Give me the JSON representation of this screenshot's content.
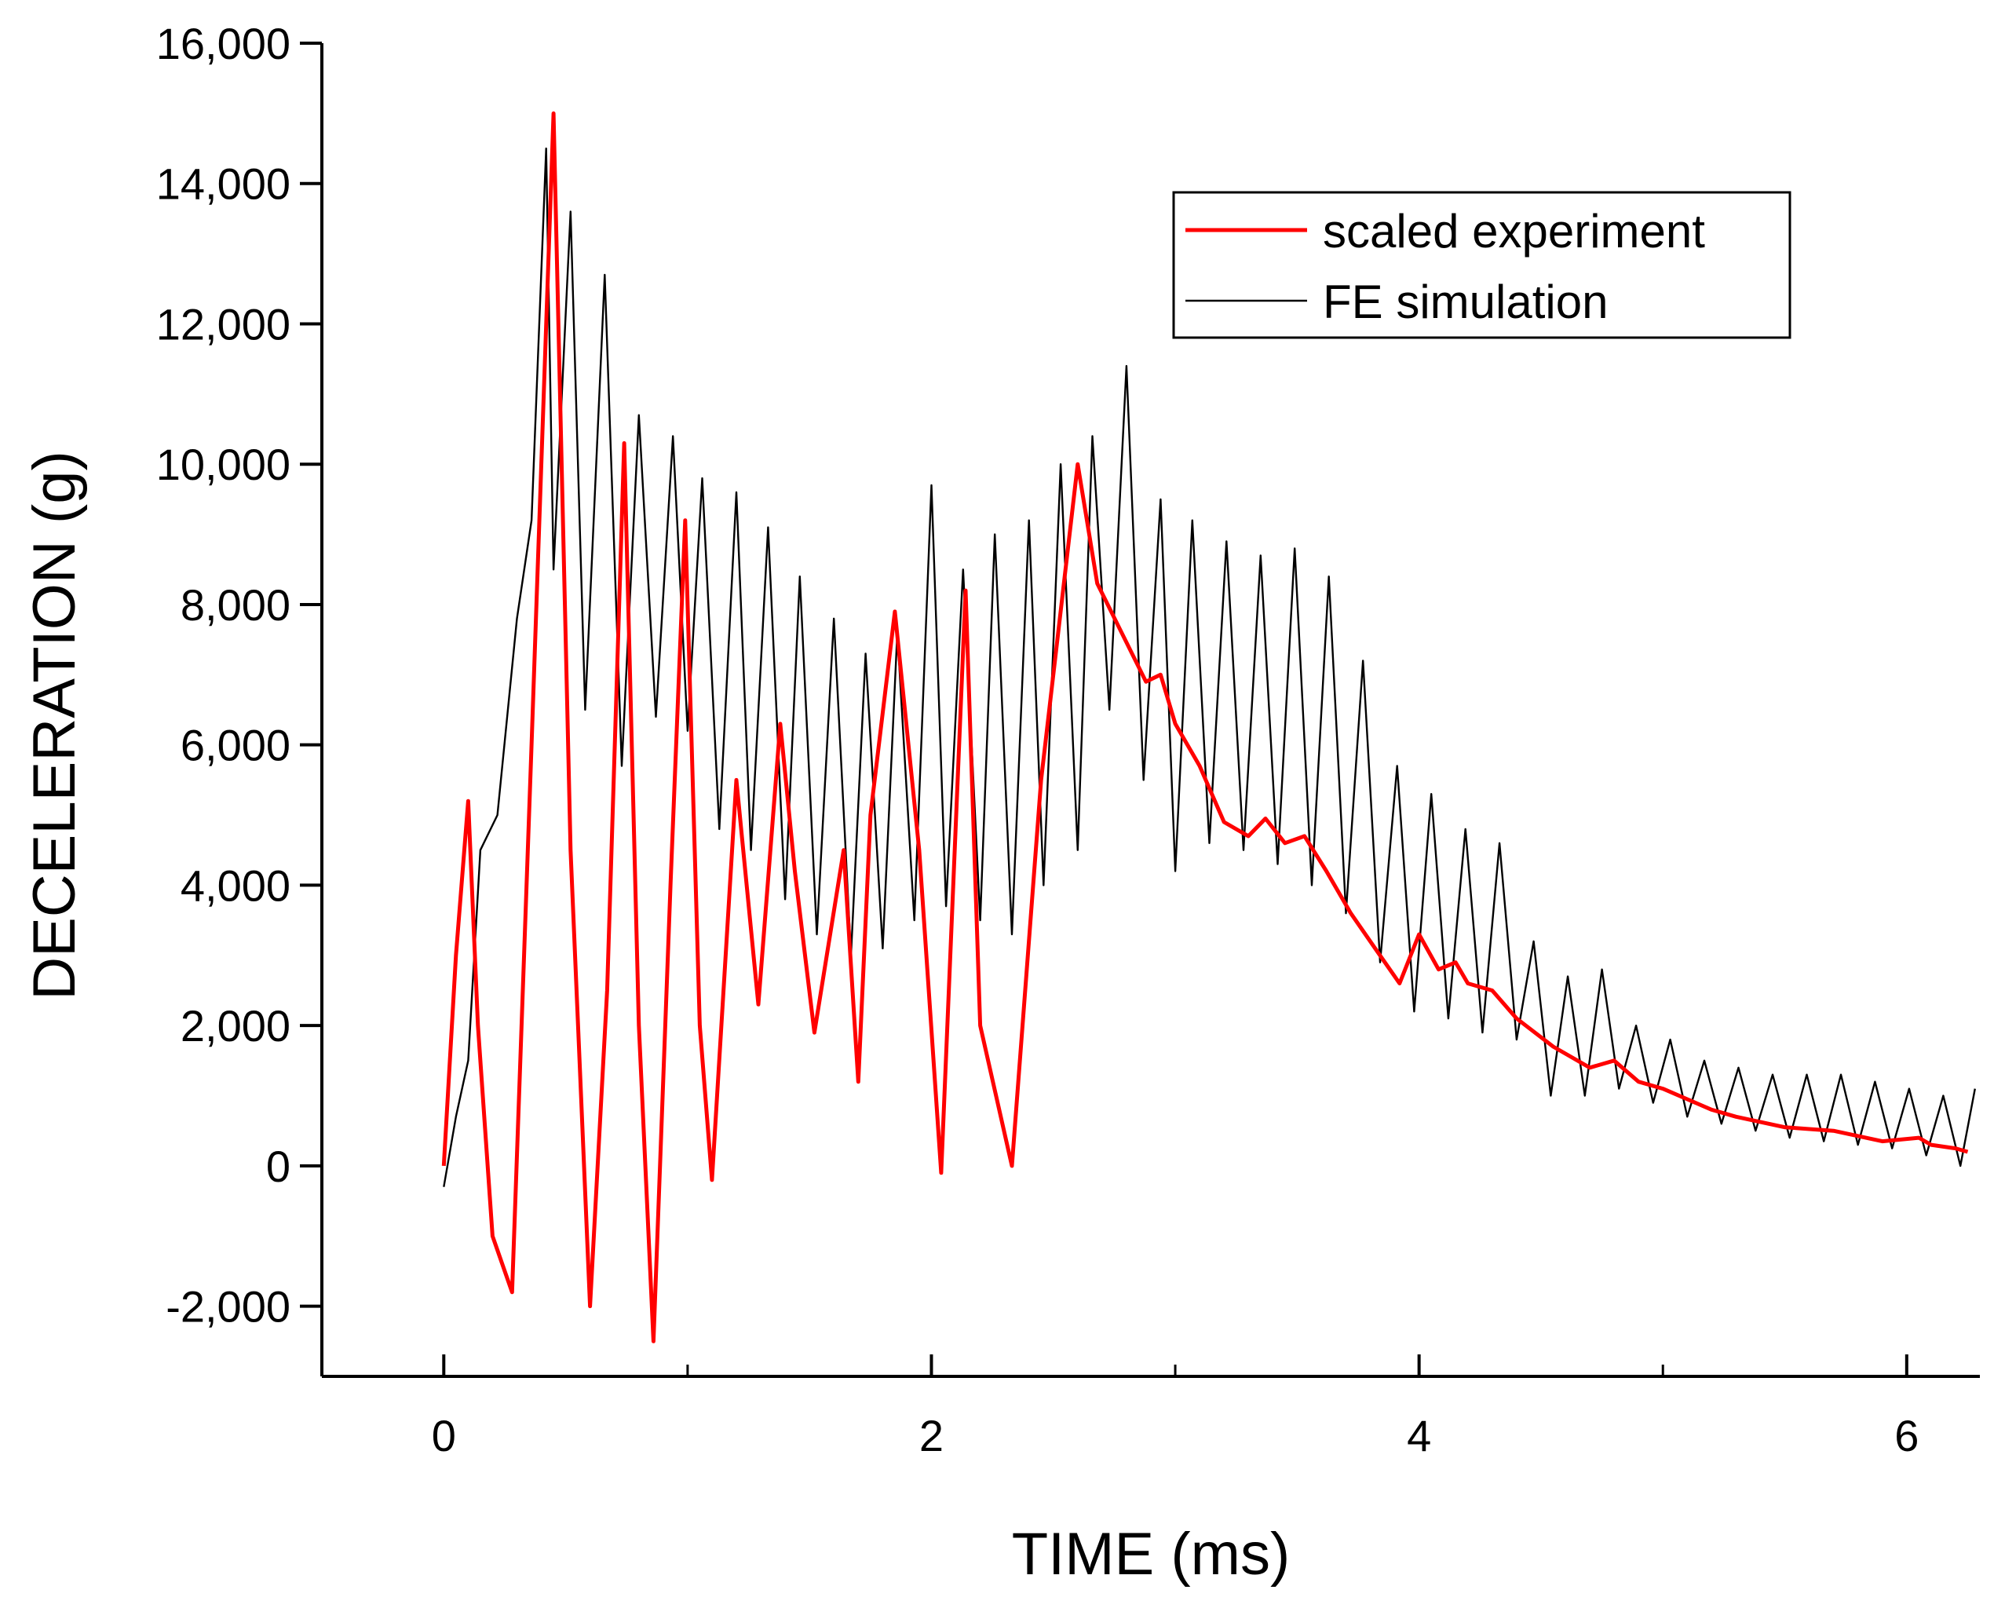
{
  "chart_data": {
    "type": "line",
    "title": "",
    "xlabel": "TIME (ms)",
    "ylabel": "DECELERATION (g)",
    "xlim": [
      -0.5,
      6.3
    ],
    "ylim": [
      -3000,
      16000
    ],
    "x_ticks": [
      0,
      2,
      4,
      6
    ],
    "x_tick_labels": [
      "0",
      "2",
      "4",
      "6"
    ],
    "y_ticks": [
      -2000,
      0,
      2000,
      4000,
      6000,
      8000,
      10000,
      12000,
      14000,
      16000
    ],
    "y_tick_labels": [
      "-2,000",
      "0",
      "2,000",
      "4,000",
      "6,000",
      "8,000",
      "10,000",
      "12,000",
      "14,000",
      "16,000"
    ],
    "grid": false,
    "legend_position": "top-right",
    "series": [
      {
        "name": "scaled experiment",
        "color": "#ff0000",
        "x": [
          0,
          0.05,
          0.1,
          0.14,
          0.2,
          0.28,
          0.36,
          0.45,
          0.52,
          0.6,
          0.67,
          0.74,
          0.8,
          0.86,
          0.93,
          0.99,
          1.05,
          1.1,
          1.2,
          1.29,
          1.38,
          1.44,
          1.52,
          1.64,
          1.7,
          1.75,
          1.85,
          1.95,
          2.04,
          2.14,
          2.2,
          2.33,
          2.45,
          2.6,
          2.68,
          2.78,
          2.88,
          2.94,
          3.0,
          3.1,
          3.2,
          3.3,
          3.37,
          3.45,
          3.53,
          3.62,
          3.72,
          3.82,
          3.92,
          4.0,
          4.08,
          4.15,
          4.2,
          4.3,
          4.4,
          4.55,
          4.7,
          4.8,
          4.9,
          5.0,
          5.1,
          5.2,
          5.3,
          5.5,
          5.7,
          5.9,
          6.05,
          6.1,
          6.2,
          6.25
        ],
        "y": [
          0,
          3000,
          5200,
          2000,
          -1000,
          -1800,
          6000,
          15000,
          4500,
          -2000,
          2500,
          10300,
          2000,
          -2500,
          4000,
          9200,
          2000,
          -200,
          5500,
          2300,
          6300,
          4200,
          1900,
          4500,
          1200,
          5000,
          7900,
          4500,
          -100,
          8200,
          2000,
          0,
          5500,
          10000,
          8300,
          7600,
          6900,
          7000,
          6300,
          5700,
          4900,
          4700,
          4950,
          4600,
          4700,
          4200,
          3600,
          3100,
          2600,
          3300,
          2800,
          2900,
          2600,
          2500,
          2100,
          1700,
          1400,
          1500,
          1200,
          1100,
          950,
          800,
          700,
          550,
          500,
          350,
          400,
          300,
          250,
          200
        ]
      },
      {
        "name": "FE simulation",
        "color": "#000000",
        "x": [
          0,
          0.05,
          0.1,
          0.15,
          0.22,
          0.3,
          0.36,
          0.42,
          0.45,
          0.52,
          0.58,
          0.66,
          0.73,
          0.8,
          0.87,
          0.94,
          1.0,
          1.06,
          1.13,
          1.2,
          1.26,
          1.33,
          1.4,
          1.46,
          1.53,
          1.6,
          1.67,
          1.73,
          1.8,
          1.86,
          1.93,
          2.0,
          2.06,
          2.13,
          2.2,
          2.26,
          2.33,
          2.4,
          2.46,
          2.53,
          2.6,
          2.66,
          2.73,
          2.8,
          2.87,
          2.94,
          3.0,
          3.07,
          3.14,
          3.21,
          3.28,
          3.35,
          3.42,
          3.49,
          3.56,
          3.63,
          3.7,
          3.77,
          3.84,
          3.91,
          3.98,
          4.05,
          4.12,
          4.19,
          4.26,
          4.33,
          4.4,
          4.47,
          4.54,
          4.61,
          4.68,
          4.75,
          4.82,
          4.89,
          4.96,
          5.03,
          5.1,
          5.17,
          5.24,
          5.31,
          5.38,
          5.45,
          5.52,
          5.59,
          5.66,
          5.73,
          5.8,
          5.87,
          5.94,
          6.01,
          6.08,
          6.15,
          6.22,
          6.28
        ],
        "y": [
          -300,
          700,
          1500,
          4500,
          5000,
          7800,
          9200,
          14500,
          8500,
          13600,
          6500,
          12700,
          5700,
          10700,
          6400,
          10400,
          6200,
          9800,
          4800,
          9600,
          4500,
          9100,
          3800,
          8400,
          3300,
          7800,
          3000,
          7300,
          3100,
          7600,
          3500,
          9700,
          3700,
          8500,
          3500,
          9000,
          3300,
          9200,
          4000,
          10000,
          4500,
          10400,
          6500,
          11400,
          5500,
          9500,
          4200,
          9200,
          4600,
          8900,
          4500,
          8700,
          4300,
          8800,
          4000,
          8400,
          3600,
          7200,
          2900,
          5700,
          2200,
          5300,
          2100,
          4800,
          1900,
          4600,
          1800,
          3200,
          1000,
          2700,
          1000,
          2800,
          1100,
          2000,
          900,
          1800,
          700,
          1500,
          600,
          1400,
          500,
          1300,
          400,
          1300,
          350,
          1300,
          300,
          1200,
          250,
          1100,
          150,
          1000,
          0,
          1100
        ]
      }
    ]
  }
}
